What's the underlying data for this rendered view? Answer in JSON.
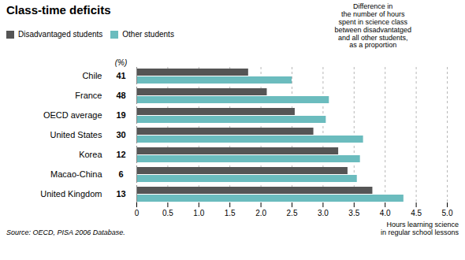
{
  "chart_data": {
    "type": "bar",
    "orientation": "horizontal",
    "title": "Class-time deficits",
    "annotation": "Difference in\nthe number of hours\nspent in science class\nbetween disadvantatged\nand all other students,\nas a proportion",
    "xlabel": "Hours learning science\nin regular school lessons",
    "source": "Source: OECD, PISA 2006 Database.",
    "categories": [
      "Chile",
      "France",
      "OECD average",
      "United States",
      "Korea",
      "Macao-China",
      "United Kingdom"
    ],
    "series": [
      {
        "name": "Disadvantaged students",
        "color": "#555555",
        "values": [
          1.8,
          2.1,
          2.55,
          2.85,
          3.25,
          3.4,
          3.8
        ]
      },
      {
        "name": "Other students",
        "color": "#6bbcbe",
        "values": [
          2.5,
          3.1,
          3.05,
          3.65,
          3.6,
          3.55,
          4.3
        ]
      }
    ],
    "percentages": [
      41,
      48,
      19,
      30,
      12,
      6,
      13
    ],
    "percentages_label": "(%)",
    "xlim": [
      0,
      5.0
    ],
    "xticks": [
      0,
      0.5,
      {
        "value": 1.0,
        "label": "1.0"
      },
      1.5,
      {
        "value": 2.0,
        "label": "2.0"
      },
      2.5,
      {
        "value": 3.0,
        "label": "3.0"
      },
      3.5,
      {
        "value": 4.0,
        "label": "4.0"
      },
      4.5,
      {
        "value": 5.0,
        "label": "5.0"
      }
    ],
    "grid": true,
    "legend": "top"
  }
}
